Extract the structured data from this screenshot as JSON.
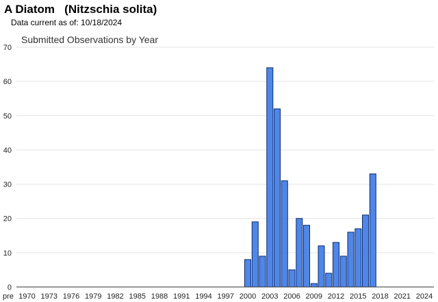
{
  "header": {
    "title": "A Diatom   (Nitzschia solita)",
    "data_current": "Data current as of: 10/18/2024"
  },
  "chart_data": {
    "type": "bar",
    "title": "Submitted Observations by Year",
    "xlabel": "",
    "ylabel": "",
    "ylim": [
      0,
      70
    ],
    "yticks": [
      0,
      10,
      20,
      30,
      40,
      50,
      60,
      70
    ],
    "x_tick_labels": [
      "pre",
      "1970",
      "1973",
      "1976",
      "1979",
      "1982",
      "1985",
      "1988",
      "1991",
      "1994",
      "1997",
      "2000",
      "2003",
      "2006",
      "2009",
      "2012",
      "2015",
      "2018",
      "2021",
      "2024"
    ],
    "grid": true,
    "legend": "none",
    "bar_color": "#4f86e8",
    "bar_edge_color": "#0b2b6b",
    "categories": [
      "2000",
      "2001",
      "2002",
      "2003",
      "2004",
      "2005",
      "2006",
      "2007",
      "2008",
      "2009",
      "2010",
      "2011",
      "2012",
      "2013",
      "2014",
      "2015",
      "2016",
      "2017"
    ],
    "values": [
      8,
      19,
      9,
      64,
      52,
      31,
      5,
      20,
      18,
      1,
      12,
      4,
      13,
      9,
      16,
      17,
      21,
      33
    ]
  }
}
